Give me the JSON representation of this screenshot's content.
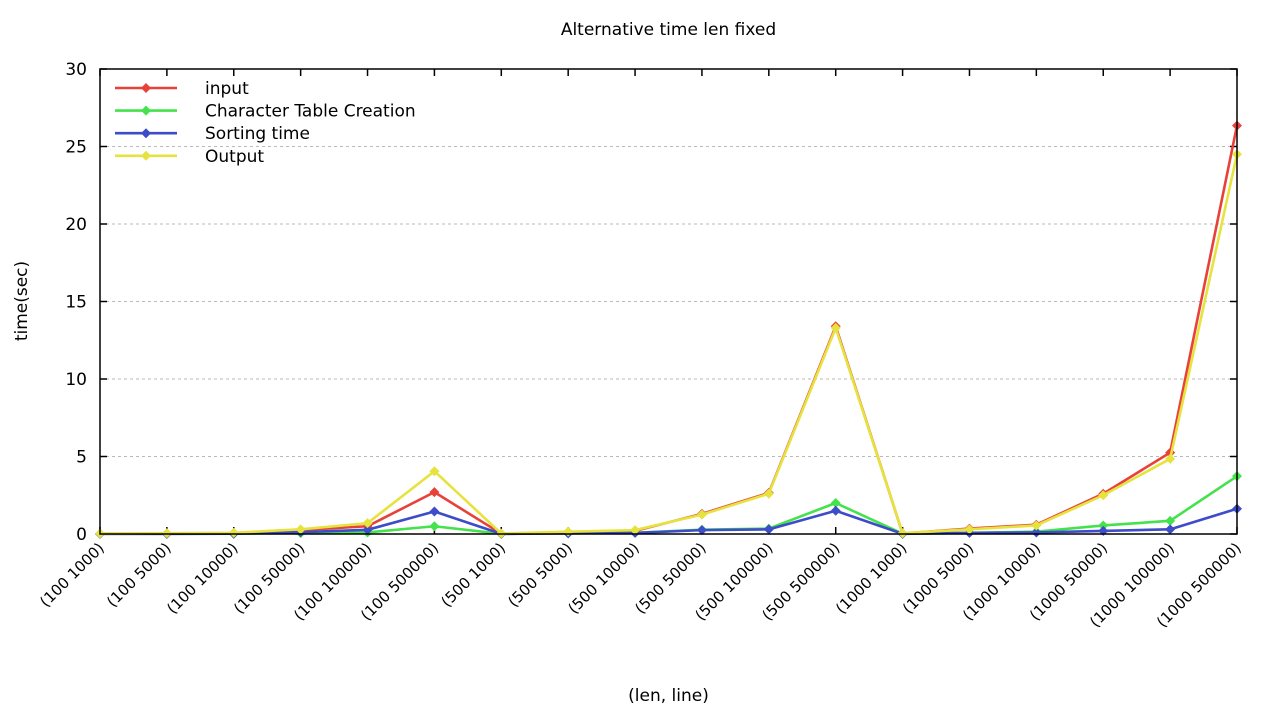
{
  "chart_data": {
    "type": "line",
    "title": "Alternative time len fixed",
    "xlabel": "(len, line)",
    "ylabel": "time(sec)",
    "ylim": [
      0,
      30
    ],
    "ytick_step": 5,
    "yticks": [
      0,
      5,
      10,
      15,
      20,
      25,
      30
    ],
    "grid": "horizontal dashed gridlines at each y tick, full box border with inward ticks",
    "legend_position": "top-left inside plot",
    "x_tick_rotation_deg": -45,
    "categories": [
      "(100 1000)",
      "(100 5000)",
      "(100 10000)",
      "(100 50000)",
      "(100 100000)",
      "(100 500000)",
      "(500 1000)",
      "(500 5000)",
      "(500 10000)",
      "(500 50000)",
      "(500 100000)",
      "(500 500000)",
      "(1000 1000)",
      "(1000 5000)",
      "(1000 10000)",
      "(1000 50000)",
      "(1000 100000)",
      "(1000 500000)"
    ],
    "series": [
      {
        "name": "input",
        "color": "#e8413a",
        "values": [
          0.02,
          0.03,
          0.05,
          0.25,
          0.5,
          2.7,
          0.02,
          0.1,
          0.2,
          1.3,
          2.65,
          13.4,
          0.03,
          0.35,
          0.6,
          2.6,
          5.25,
          26.35
        ]
      },
      {
        "name": "Character Table Creation",
        "color": "#44e24c",
        "values": [
          0.01,
          0.01,
          0.02,
          0.06,
          0.1,
          0.5,
          0.01,
          0.05,
          0.08,
          0.28,
          0.35,
          2.0,
          0.02,
          0.08,
          0.15,
          0.55,
          0.85,
          3.73
        ]
      },
      {
        "name": "Sorting time",
        "color": "#3d4cc8",
        "values": [
          0.01,
          0.01,
          0.02,
          0.12,
          0.27,
          1.45,
          0.01,
          0.04,
          0.07,
          0.25,
          0.3,
          1.5,
          0.01,
          0.07,
          0.1,
          0.2,
          0.3,
          1.63
        ]
      },
      {
        "name": "Output",
        "color": "#e6e33e",
        "values": [
          0.03,
          0.05,
          0.08,
          0.3,
          0.7,
          4.05,
          0.03,
          0.15,
          0.25,
          1.25,
          2.6,
          13.3,
          0.05,
          0.3,
          0.55,
          2.5,
          4.85,
          24.5
        ]
      }
    ],
    "colors": {
      "grid": "#b9b9b9",
      "axis": "#000000",
      "background": "#ffffff"
    }
  }
}
